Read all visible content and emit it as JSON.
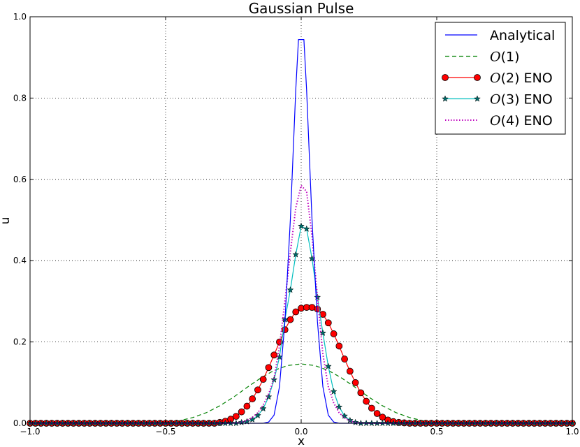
{
  "chart_data": {
    "type": "line",
    "title": "Gaussian Pulse",
    "xlabel": "x",
    "ylabel": "u",
    "xlim": [
      -1.0,
      1.0
    ],
    "ylim": [
      0.0,
      1.0
    ],
    "xticks": [
      "−1.0",
      "−0.5",
      "0.0",
      "0.5",
      "1.0"
    ],
    "yticks": [
      "0.0",
      "0.2",
      "0.4",
      "0.6",
      "0.8",
      "1.0"
    ],
    "grid": true,
    "legend_position": "top-right",
    "series": [
      {
        "name": "Analytical",
        "legend_prefix": "",
        "legend_math": "",
        "legend_suffix": "Analytical",
        "color": "#0000ff",
        "style": "solid",
        "marker": "none",
        "x": [
          -1.0,
          -0.14,
          -0.12,
          -0.1,
          -0.08,
          -0.06,
          -0.04,
          -0.02,
          -0.01,
          0.01,
          0.02,
          0.04,
          0.06,
          0.08,
          0.1,
          0.12,
          0.14,
          1.0
        ],
        "y": [
          0.0,
          0.0,
          0.003,
          0.02,
          0.09,
          0.25,
          0.5,
          0.82,
          0.944,
          0.944,
          0.82,
          0.5,
          0.25,
          0.09,
          0.02,
          0.003,
          0.0,
          0.0
        ]
      },
      {
        "name": "O(1)",
        "legend_prefix": "",
        "legend_math": "O",
        "legend_suffix": "(1)",
        "color": "#008000",
        "style": "dashed",
        "marker": "none",
        "x": [
          -1.0,
          -0.7,
          -0.6,
          -0.5,
          -0.45,
          -0.4,
          -0.35,
          -0.3,
          -0.25,
          -0.2,
          -0.15,
          -0.1,
          -0.05,
          0.0,
          0.05,
          0.1,
          0.15,
          0.2,
          0.25,
          0.3,
          0.35,
          0.4,
          0.45,
          0.5,
          0.6,
          0.7,
          1.0
        ],
        "y": [
          0.0,
          0.0,
          0.0,
          0.002,
          0.006,
          0.014,
          0.026,
          0.043,
          0.064,
          0.088,
          0.111,
          0.13,
          0.142,
          0.146,
          0.142,
          0.13,
          0.111,
          0.088,
          0.064,
          0.043,
          0.026,
          0.014,
          0.006,
          0.002,
          0.0,
          0.0,
          0.0
        ]
      },
      {
        "name": "O(2) ENO",
        "legend_prefix": "",
        "legend_math": "O",
        "legend_suffix": "(2) ENO",
        "color": "#ff0000",
        "style": "solid",
        "marker": "circle",
        "x": [
          -1.0,
          -0.98,
          -0.96,
          -0.94,
          -0.92,
          -0.9,
          -0.88,
          -0.86,
          -0.84,
          -0.82,
          -0.8,
          -0.78,
          -0.76,
          -0.74,
          -0.72,
          -0.7,
          -0.68,
          -0.66,
          -0.64,
          -0.62,
          -0.6,
          -0.58,
          -0.56,
          -0.54,
          -0.52,
          -0.5,
          -0.48,
          -0.46,
          -0.44,
          -0.42,
          -0.4,
          -0.38,
          -0.36,
          -0.34,
          -0.32,
          -0.3,
          -0.28,
          -0.26,
          -0.24,
          -0.22,
          -0.2,
          -0.18,
          -0.16,
          -0.14,
          -0.12,
          -0.1,
          -0.08,
          -0.06,
          -0.04,
          -0.02,
          0.0,
          0.02,
          0.04,
          0.06,
          0.08,
          0.1,
          0.12,
          0.14,
          0.16,
          0.18,
          0.2,
          0.22,
          0.24,
          0.26,
          0.28,
          0.3,
          0.32,
          0.34,
          0.36,
          0.38,
          0.4,
          0.42,
          0.44,
          0.46,
          0.48,
          0.5,
          0.52,
          0.54,
          0.56,
          0.58,
          0.6,
          0.62,
          0.64,
          0.66,
          0.68,
          0.7,
          0.72,
          0.74,
          0.76,
          0.78,
          0.8,
          0.82,
          0.84,
          0.86,
          0.88,
          0.9,
          0.92,
          0.94,
          0.96,
          0.98,
          1.0
        ],
        "y": [
          0.0,
          0.0,
          0.0,
          0.0,
          0.0,
          0.0,
          0.0,
          0.0,
          0.0,
          0.0,
          0.0,
          0.0,
          0.0,
          0.0,
          0.0,
          0.0,
          0.0,
          0.0,
          0.0,
          0.0,
          0.0,
          0.0,
          0.0,
          0.0,
          0.0,
          0.0,
          0.0,
          0.0,
          0.0,
          0.0,
          0.0,
          0.0,
          0.0,
          0.0,
          0.0,
          0.002,
          0.005,
          0.01,
          0.017,
          0.028,
          0.042,
          0.06,
          0.082,
          0.108,
          0.137,
          0.168,
          0.2,
          0.23,
          0.255,
          0.274,
          0.283,
          0.285,
          0.285,
          0.281,
          0.268,
          0.247,
          0.22,
          0.19,
          0.158,
          0.128,
          0.1,
          0.075,
          0.054,
          0.037,
          0.024,
          0.015,
          0.008,
          0.004,
          0.002,
          0.001,
          0.0,
          0.0,
          0.0,
          0.0,
          0.0,
          0.0,
          0.0,
          0.0,
          0.0,
          0.0,
          0.0,
          0.0,
          0.0,
          0.0,
          0.0,
          0.0,
          0.0,
          0.0,
          0.0,
          0.0,
          0.0,
          0.0,
          0.0,
          0.0,
          0.0,
          0.0,
          0.0,
          0.0,
          0.0,
          0.0,
          0.0
        ]
      },
      {
        "name": "O(3) ENO",
        "legend_prefix": "",
        "legend_math": "O",
        "legend_suffix": "(3) ENO",
        "color": "#00bfbf",
        "marker_color": "#006a6a",
        "style": "solid",
        "marker": "star",
        "x": [
          -1.0,
          -0.98,
          -0.96,
          -0.94,
          -0.92,
          -0.9,
          -0.88,
          -0.86,
          -0.84,
          -0.82,
          -0.8,
          -0.78,
          -0.76,
          -0.74,
          -0.72,
          -0.7,
          -0.68,
          -0.66,
          -0.64,
          -0.62,
          -0.6,
          -0.58,
          -0.56,
          -0.54,
          -0.52,
          -0.5,
          -0.48,
          -0.46,
          -0.44,
          -0.42,
          -0.4,
          -0.38,
          -0.36,
          -0.34,
          -0.32,
          -0.3,
          -0.28,
          -0.26,
          -0.24,
          -0.22,
          -0.2,
          -0.18,
          -0.16,
          -0.14,
          -0.12,
          -0.1,
          -0.08,
          -0.06,
          -0.04,
          -0.02,
          0.0,
          0.02,
          0.04,
          0.06,
          0.08,
          0.1,
          0.12,
          0.14,
          0.16,
          0.18,
          0.2,
          0.22,
          0.24,
          0.26,
          0.28,
          0.3,
          0.32,
          0.34,
          0.36,
          0.38,
          0.4,
          0.42,
          0.44,
          0.46,
          0.48,
          0.5,
          0.52,
          0.54,
          0.56,
          0.58,
          0.6,
          0.62,
          0.64,
          0.66,
          0.68,
          0.7,
          0.72,
          0.74,
          0.76,
          0.78,
          0.8,
          0.82,
          0.84,
          0.86,
          0.88,
          0.9,
          0.92,
          0.94,
          0.96,
          0.98,
          1.0
        ],
        "y": [
          0.0,
          0.0,
          0.0,
          0.0,
          0.0,
          0.0,
          0.0,
          0.0,
          0.0,
          0.0,
          0.0,
          0.0,
          0.0,
          0.0,
          0.0,
          0.0,
          0.0,
          0.0,
          0.0,
          0.0,
          0.0,
          0.0,
          0.0,
          0.0,
          0.0,
          0.0,
          0.0,
          0.0,
          0.0,
          0.0,
          0.0,
          0.0,
          0.0,
          0.0,
          0.0,
          0.0,
          0.0,
          0.0,
          0.0,
          0.002,
          0.004,
          0.009,
          0.019,
          0.036,
          0.065,
          0.107,
          0.163,
          0.255,
          0.328,
          0.415,
          0.485,
          0.478,
          0.405,
          0.31,
          0.222,
          0.14,
          0.078,
          0.04,
          0.018,
          0.007,
          0.002,
          0.0,
          0.0,
          0.0,
          0.0,
          0.0,
          0.0,
          0.0,
          0.0,
          0.0,
          0.0,
          0.0,
          0.0,
          0.0,
          0.0,
          0.0,
          0.0,
          0.0,
          0.0,
          0.0,
          0.0,
          0.0,
          0.0,
          0.0,
          0.0,
          0.0,
          0.0,
          0.0,
          0.0,
          0.0,
          0.0,
          0.0,
          0.0,
          0.0,
          0.0,
          0.0,
          0.0,
          0.0,
          0.0,
          0.0,
          0.0
        ]
      },
      {
        "name": "O(4) ENO",
        "legend_prefix": "",
        "legend_math": "O",
        "legend_suffix": "(4) ENO",
        "color": "#bf00bf",
        "style": "dotted",
        "marker": "none",
        "x": [
          -1.0,
          -0.26,
          -0.24,
          -0.22,
          -0.2,
          -0.18,
          -0.16,
          -0.14,
          -0.12,
          -0.1,
          -0.08,
          -0.06,
          -0.04,
          -0.02,
          0.0,
          0.02,
          0.04,
          0.06,
          0.08,
          0.1,
          0.12,
          0.14,
          0.16,
          0.18,
          0.2,
          0.22,
          0.24,
          1.0
        ],
        "y": [
          0.0,
          0.0,
          0.001,
          0.003,
          0.007,
          0.014,
          0.026,
          0.045,
          0.072,
          0.11,
          0.19,
          0.3,
          0.42,
          0.53,
          0.585,
          0.57,
          0.46,
          0.31,
          0.17,
          0.09,
          0.05,
          0.026,
          0.013,
          0.006,
          0.002,
          0.001,
          0.0,
          0.0
        ]
      }
    ]
  }
}
